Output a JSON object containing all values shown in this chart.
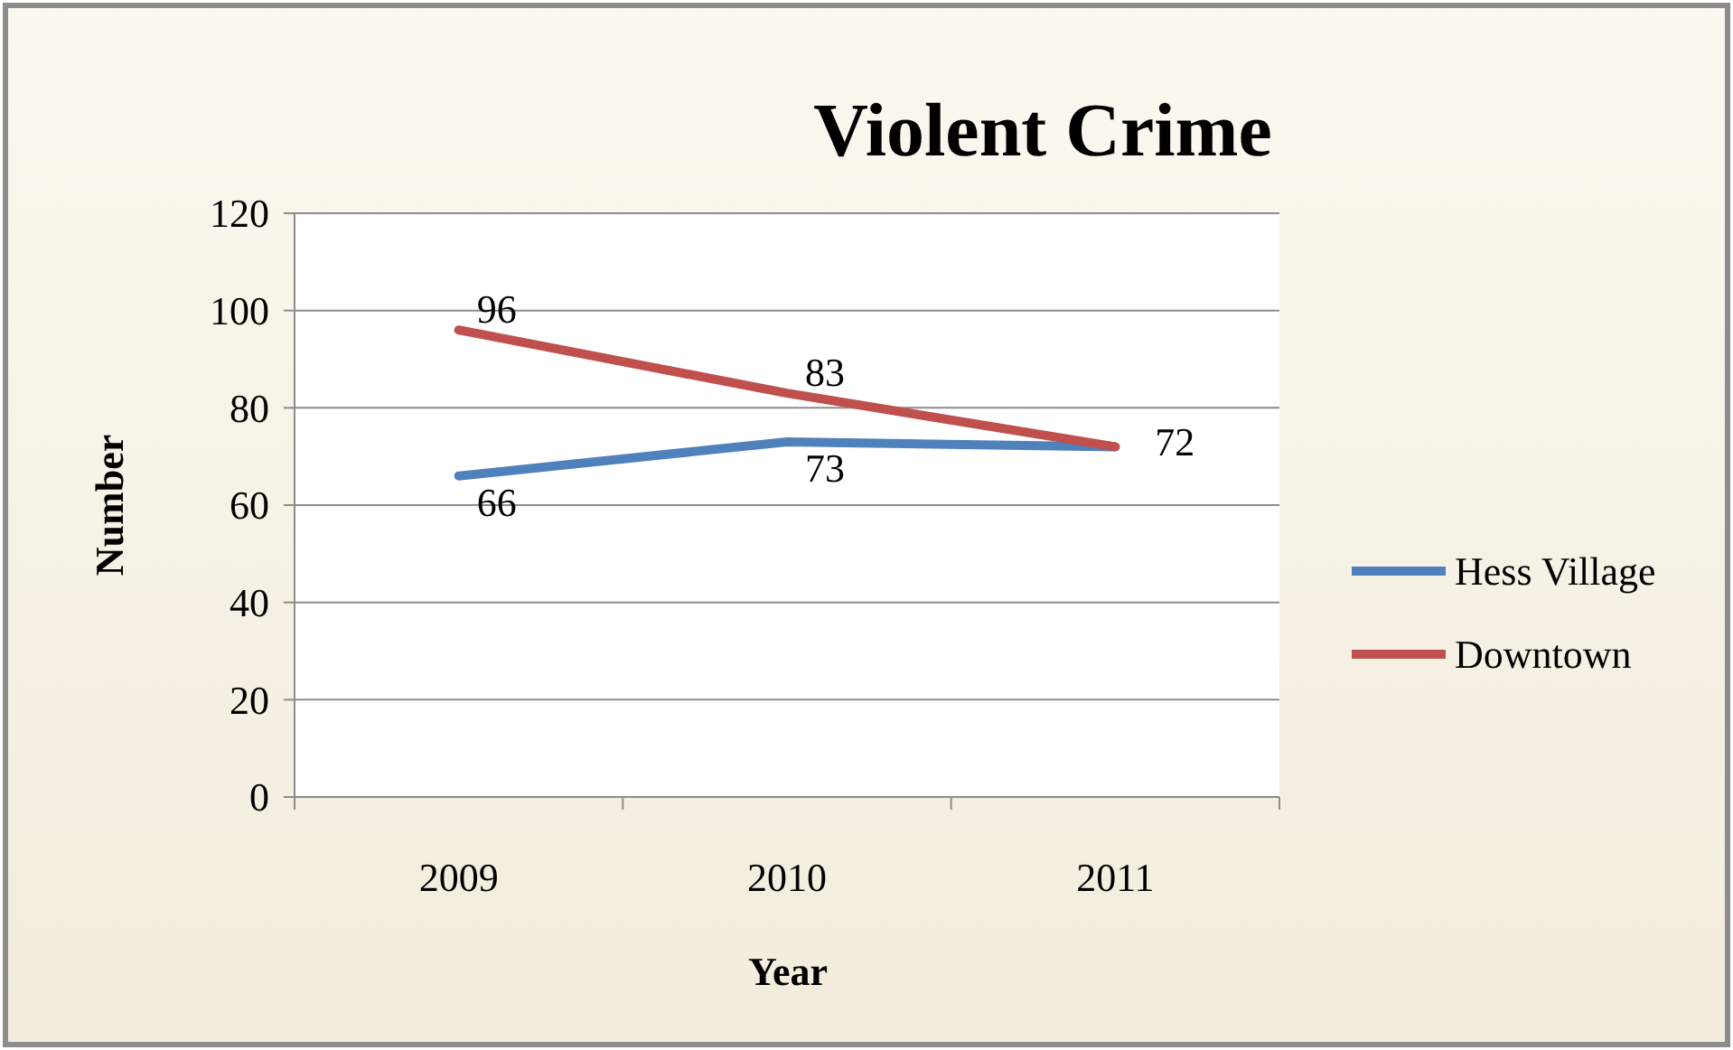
{
  "chart_data": {
    "type": "line",
    "title": "Violent Crime",
    "xlabel": "Year",
    "ylabel": "Number",
    "categories": [
      "2009",
      "2010",
      "2011"
    ],
    "series": [
      {
        "name": "Hess Village",
        "color": "#4f81bd",
        "values": [
          66,
          73,
          72
        ],
        "value_labels": [
          "66",
          "73",
          "72"
        ]
      },
      {
        "name": "Downtown",
        "color": "#c0504d",
        "values": [
          96,
          83,
          72
        ],
        "value_labels": [
          "96",
          "83",
          null
        ]
      }
    ],
    "ylim": [
      0,
      120
    ],
    "yticks": [
      0,
      20,
      40,
      60,
      80,
      100,
      120
    ],
    "grid": "y",
    "legend": "right",
    "marker": "none",
    "line_style": "solid"
  }
}
